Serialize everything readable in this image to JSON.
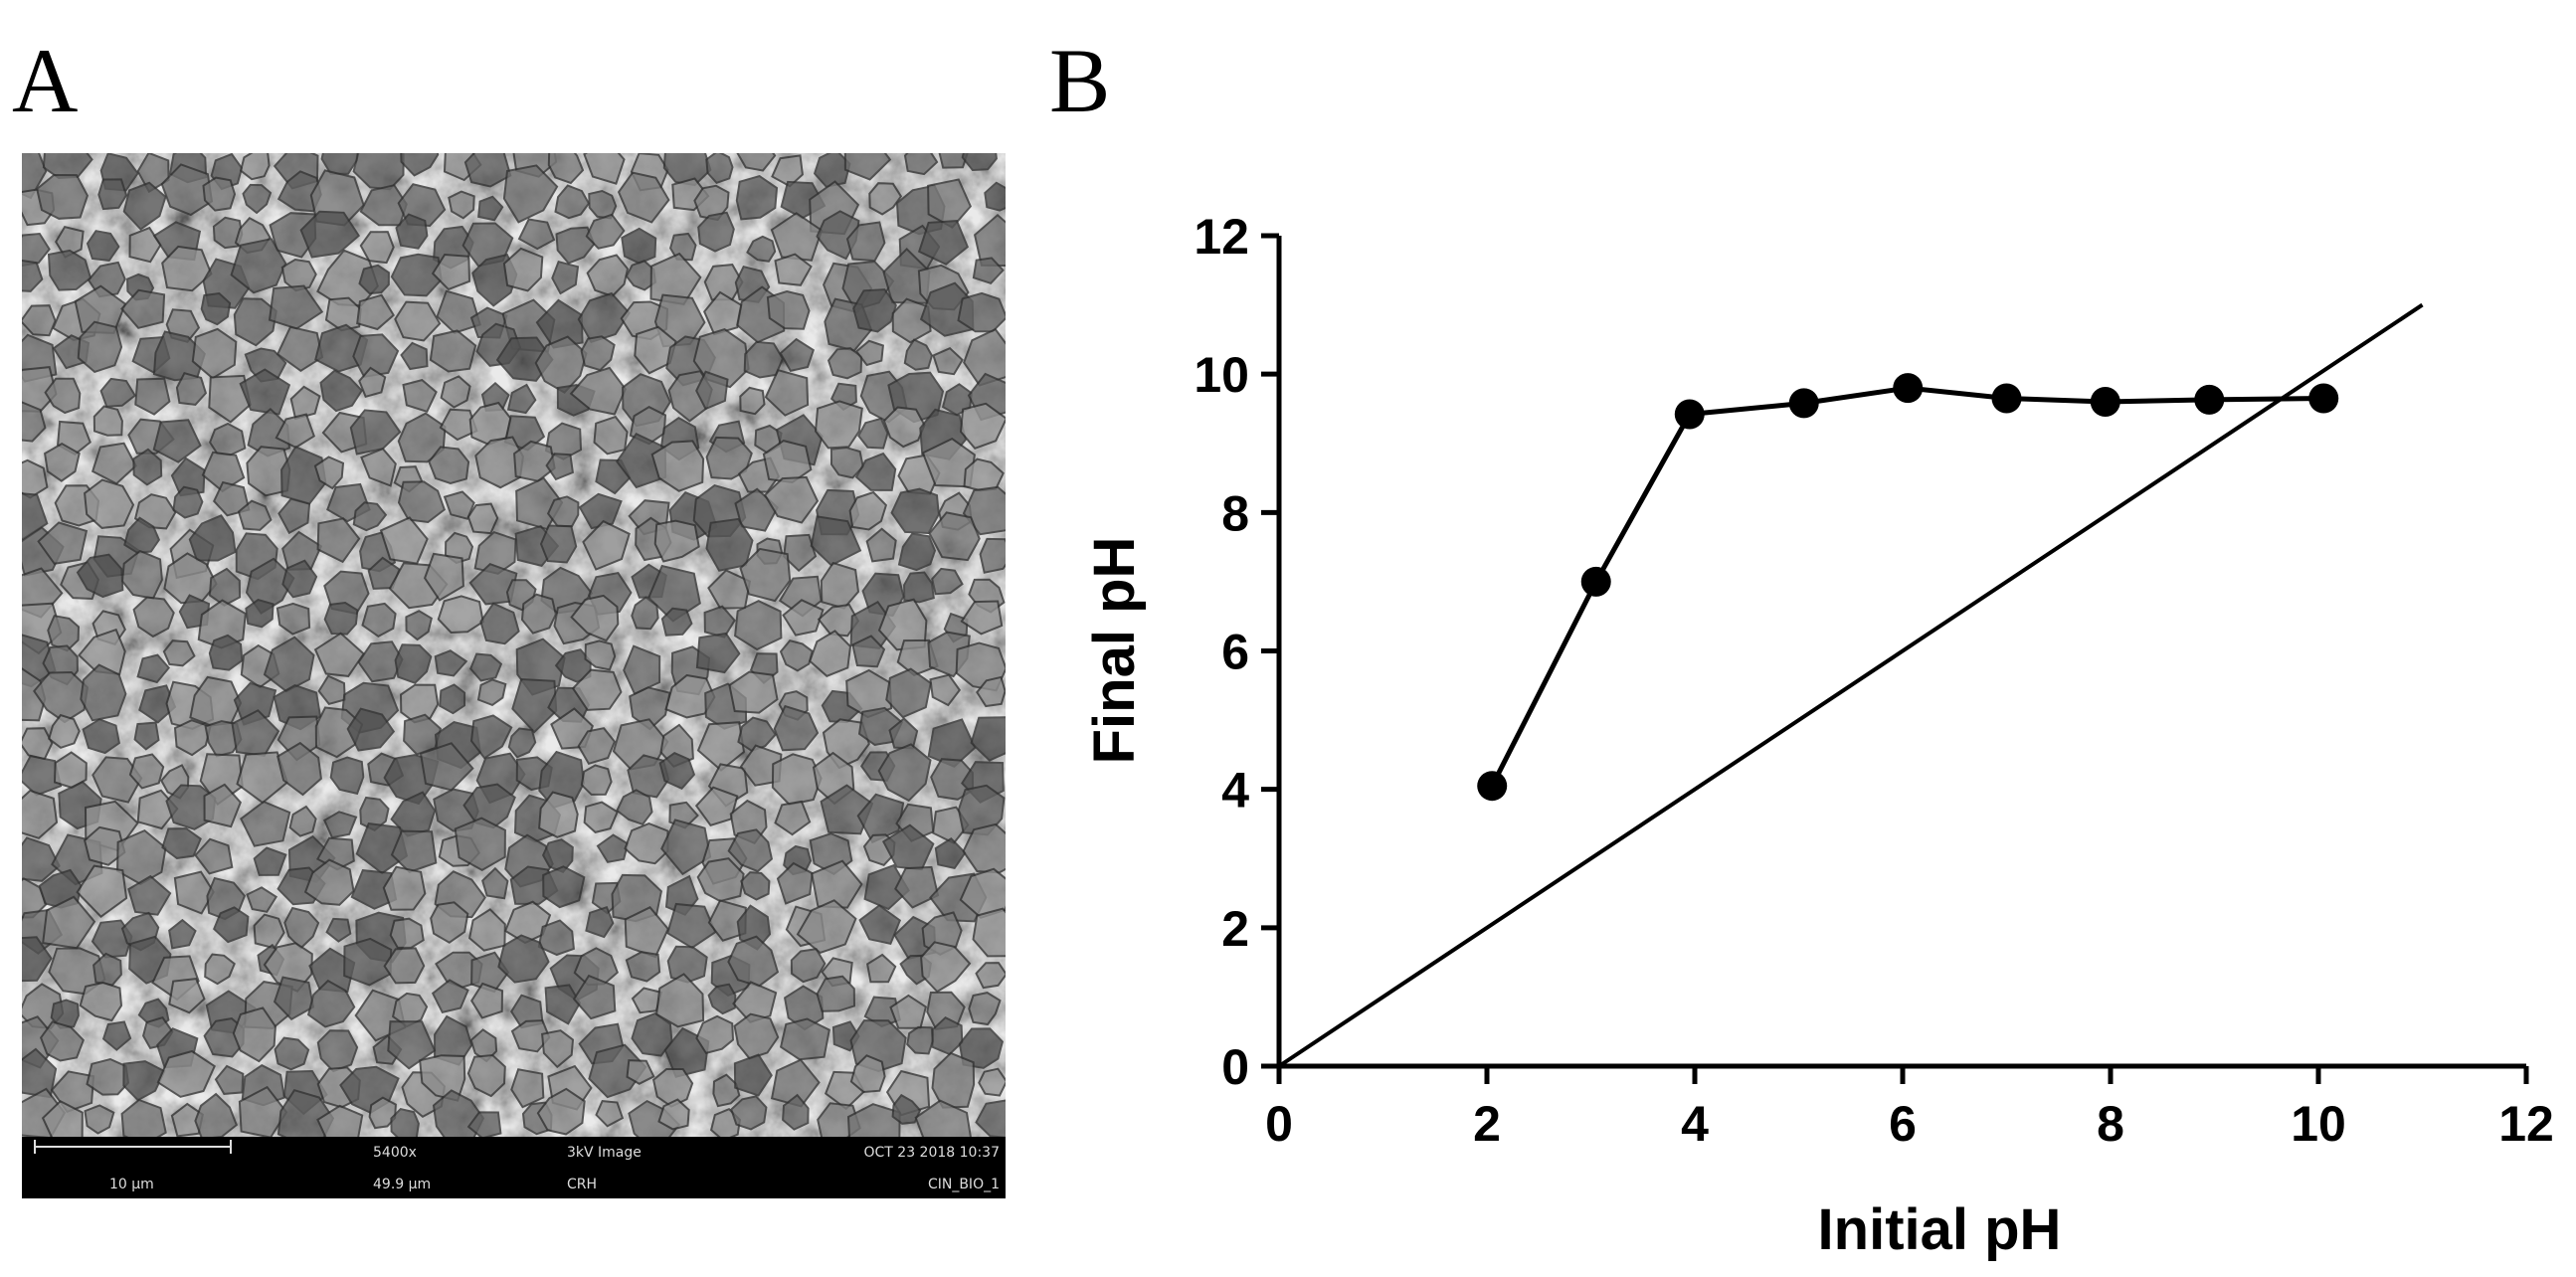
{
  "panel_labels": [
    "A",
    "B"
  ],
  "sem_info": {
    "scale_bar": "10 μm",
    "magnification": "5400x",
    "hfw": "49.9 μm",
    "mode": "3kV Image",
    "operator": "CRH",
    "date": "OCT 23 2018 10:37",
    "sample": "CIN_BIO_1"
  },
  "chart_data": {
    "type": "line",
    "x_label": "Initial pH",
    "y_label": "Final pH",
    "x": [
      2.05,
      3.05,
      3.95,
      5.05,
      6.05,
      7.0,
      7.95,
      8.95,
      10.05
    ],
    "series": [
      {
        "color": "#000000",
        "values": [
          4.05,
          7.0,
          9.42,
          9.58,
          9.8,
          9.65,
          9.6,
          9.63,
          9.65
        ]
      }
    ],
    "reference_line": {
      "x": [
        0,
        11
      ],
      "y": [
        0,
        11
      ]
    },
    "xlim": [
      0,
      12
    ],
    "ylim": [
      0,
      12
    ],
    "xticks": [
      0,
      2,
      4,
      6,
      8,
      10,
      12
    ],
    "yticks": [
      0,
      2,
      4,
      6,
      8,
      10,
      12
    ]
  }
}
